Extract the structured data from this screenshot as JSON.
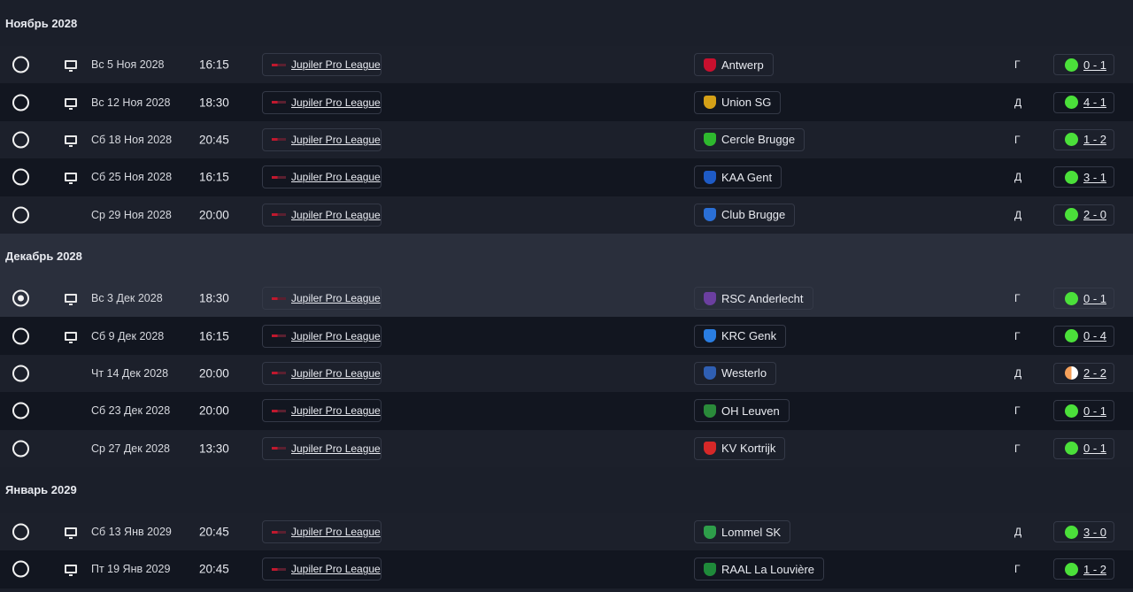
{
  "colors": {
    "win": "#4be03a",
    "draw": "#f5a05a",
    "league": "#c0182e"
  },
  "sections": [
    {
      "title": "Ноябрь 2028",
      "matches": [
        {
          "selected": false,
          "tv": true,
          "date": "Вс 5 Ноя 2028",
          "time": "16:15",
          "competition": "Jupiler Pro League",
          "team": "Antwerp",
          "crest": "#c8102e",
          "venue": "Г",
          "result": "0 - 1",
          "outcome": "win"
        },
        {
          "selected": false,
          "tv": true,
          "date": "Вс 12 Ноя 2028",
          "time": "18:30",
          "competition": "Jupiler Pro League",
          "team": "Union SG",
          "crest": "#d4a017",
          "venue": "Д",
          "result": "4 - 1",
          "outcome": "win"
        },
        {
          "selected": false,
          "tv": true,
          "date": "Сб 18 Ноя 2028",
          "time": "20:45",
          "competition": "Jupiler Pro League",
          "team": "Cercle Brugge",
          "crest": "#2eb82e",
          "venue": "Г",
          "result": "1 - 2",
          "outcome": "win"
        },
        {
          "selected": false,
          "tv": true,
          "date": "Сб 25 Ноя 2028",
          "time": "16:15",
          "competition": "Jupiler Pro League",
          "team": "KAA Gent",
          "crest": "#1e5bc6",
          "venue": "Д",
          "result": "3 - 1",
          "outcome": "win"
        },
        {
          "selected": false,
          "tv": false,
          "date": "Ср 29 Ноя 2028",
          "time": "20:00",
          "competition": "Jupiler Pro League",
          "team": "Club Brugge",
          "crest": "#2a6fd6",
          "venue": "Д",
          "result": "2 - 0",
          "outcome": "win"
        }
      ]
    },
    {
      "title": "Декабрь 2028",
      "highlight": true,
      "matches": [
        {
          "selected": true,
          "tv": true,
          "date": "Вс 3 Дек 2028",
          "time": "18:30",
          "competition": "Jupiler Pro League",
          "team": "RSC Anderlecht",
          "crest": "#6b3fa0",
          "venue": "Г",
          "result": "0 - 1",
          "outcome": "win"
        },
        {
          "selected": false,
          "tv": true,
          "date": "Сб 9 Дек 2028",
          "time": "16:15",
          "competition": "Jupiler Pro League",
          "team": "KRC Genk",
          "crest": "#2a7de1",
          "venue": "Г",
          "result": "0 - 4",
          "outcome": "win"
        },
        {
          "selected": false,
          "tv": false,
          "date": "Чт 14 Дек 2028",
          "time": "20:00",
          "competition": "Jupiler Pro League",
          "team": "Westerlo",
          "crest": "#2f5fb3",
          "venue": "Д",
          "result": "2 - 2",
          "outcome": "draw"
        },
        {
          "selected": false,
          "tv": false,
          "date": "Сб 23 Дек 2028",
          "time": "20:00",
          "competition": "Jupiler Pro League",
          "team": "OH Leuven",
          "crest": "#2a8a3a",
          "venue": "Г",
          "result": "0 - 1",
          "outcome": "win"
        },
        {
          "selected": false,
          "tv": false,
          "date": "Ср 27 Дек 2028",
          "time": "13:30",
          "competition": "Jupiler Pro League",
          "team": "KV Kortrijk",
          "crest": "#d62828",
          "venue": "Г",
          "result": "0 - 1",
          "outcome": "win"
        }
      ]
    },
    {
      "title": "Январь 2029",
      "matches": [
        {
          "selected": false,
          "tv": true,
          "date": "Сб 13 Янв 2029",
          "time": "20:45",
          "competition": "Jupiler Pro League",
          "team": "Lommel SK",
          "crest": "#2e9e4a",
          "venue": "Д",
          "result": "3 - 0",
          "outcome": "win"
        },
        {
          "selected": false,
          "tv": true,
          "date": "Пт 19 Янв 2029",
          "time": "20:45",
          "competition": "Jupiler Pro League",
          "team": "RAAL La Louvière",
          "crest": "#1f8a3a",
          "venue": "Г",
          "result": "1 - 2",
          "outcome": "win"
        }
      ]
    }
  ]
}
